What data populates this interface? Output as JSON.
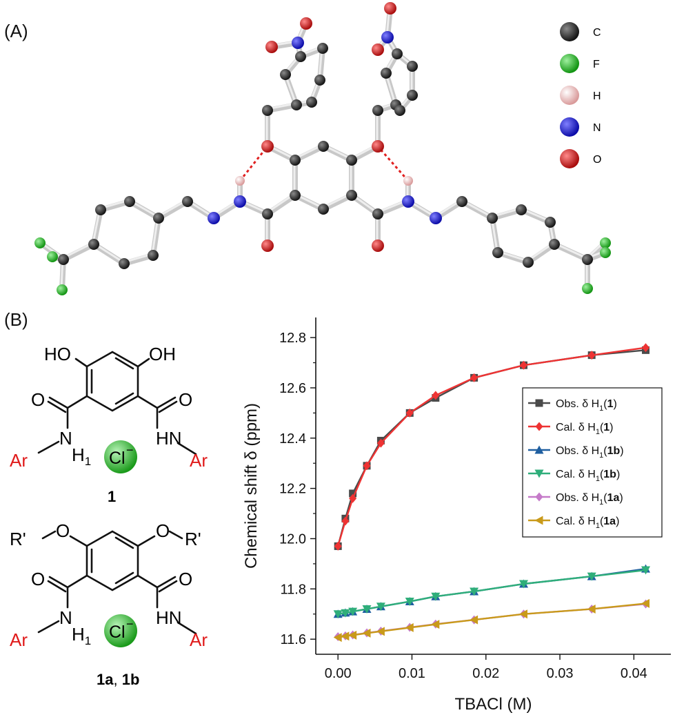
{
  "panels": {
    "a_label": "(A)",
    "b_label": "(B)"
  },
  "atom_legend": [
    {
      "symbol": "C",
      "color": "#1a1a1a"
    },
    {
      "symbol": "F",
      "color": "#1aa31a"
    },
    {
      "symbol": "H",
      "color": "#f0b8b8"
    },
    {
      "symbol": "N",
      "color": "#1a1acc"
    },
    {
      "symbol": "O",
      "color": "#cc1a1a"
    }
  ],
  "structures": {
    "compound1": {
      "label": "1",
      "ho_left": "HO",
      "oh_right": "OH",
      "o_left": "O",
      "o_right": "O",
      "n_left": "N",
      "h1": "H",
      "h1_sub": "1",
      "hn_right": "HN",
      "ar_left": "Ar",
      "ar_right": "Ar",
      "chloride": "Cl",
      "chloride_charge": "−"
    },
    "compound1ab": {
      "label_a": "1a",
      "label_sep": ", ",
      "label_b": "1b",
      "rprime_left": "R'",
      "o_ether_left": "O",
      "o_ether_right": "O",
      "rprime_right": "R'",
      "o_left": "O",
      "o_right": "O",
      "n_left": "N",
      "h1": "H",
      "h1_sub": "1",
      "hn_right": "HN",
      "ar_left": "Ar",
      "ar_right": "Ar",
      "chloride": "Cl",
      "chloride_charge": "−"
    }
  },
  "chart_data": {
    "type": "line",
    "xlabel": "TBACl (M)",
    "ylabel": "Chemical shift δ (ppm)",
    "xlim": [
      -0.003,
      0.045
    ],
    "ylim": [
      11.54,
      12.88
    ],
    "xticks": [
      "0.00",
      "0.01",
      "0.02",
      "0.03",
      "0.04"
    ],
    "xtick_values": [
      0,
      0.01,
      0.02,
      0.03,
      0.04
    ],
    "yticks": [
      "11.6",
      "11.8",
      "12.0",
      "12.2",
      "12.4",
      "12.6",
      "12.8"
    ],
    "ytick_values": [
      11.6,
      11.8,
      12.0,
      12.2,
      12.4,
      12.6,
      12.8
    ],
    "x": [
      0,
      0.001,
      0.002,
      0.0039,
      0.0058,
      0.0097,
      0.0132,
      0.0184,
      0.0251,
      0.0343,
      0.0416
    ],
    "legend_position": "right-middle",
    "series": [
      {
        "name": "Obs. δ H",
        "sub": "1",
        "compound": "1",
        "color": "#4a4a4a",
        "marker": "square",
        "values": [
          11.97,
          12.08,
          12.18,
          12.29,
          12.39,
          12.5,
          12.56,
          12.64,
          12.69,
          12.73,
          12.75
        ]
      },
      {
        "name": "Cal. δ H",
        "sub": "1",
        "compound": "1",
        "color": "#ee3333",
        "marker": "diamond",
        "values": [
          11.97,
          12.07,
          12.16,
          12.29,
          12.38,
          12.5,
          12.57,
          12.64,
          12.69,
          12.73,
          12.76
        ]
      },
      {
        "name": "Obs. δ H",
        "sub": "1",
        "compound": "1b",
        "color": "#1f5fa0",
        "marker": "triangle-up",
        "values": [
          11.7,
          11.705,
          11.71,
          11.72,
          11.73,
          11.75,
          11.77,
          11.79,
          11.82,
          11.85,
          11.88
        ]
      },
      {
        "name": "Cal. δ H",
        "sub": "1",
        "compound": "1b",
        "color": "#2fae7a",
        "marker": "triangle-down",
        "values": [
          11.7,
          11.704,
          11.71,
          11.72,
          11.73,
          11.75,
          11.77,
          11.79,
          11.82,
          11.85,
          11.875
        ]
      },
      {
        "name": "Obs. δ H",
        "sub": "1",
        "compound": "1a",
        "color": "#c57ac9",
        "marker": "diamond",
        "values": [
          11.61,
          11.613,
          11.617,
          11.625,
          11.632,
          11.647,
          11.66,
          11.677,
          11.7,
          11.72,
          11.74
        ]
      },
      {
        "name": "Cal. δ H",
        "sub": "1",
        "compound": "1a",
        "color": "#c99a1a",
        "marker": "triangle-left",
        "values": [
          11.607,
          11.612,
          11.616,
          11.624,
          11.631,
          11.646,
          11.659,
          11.677,
          11.7,
          11.72,
          11.742
        ]
      }
    ]
  }
}
